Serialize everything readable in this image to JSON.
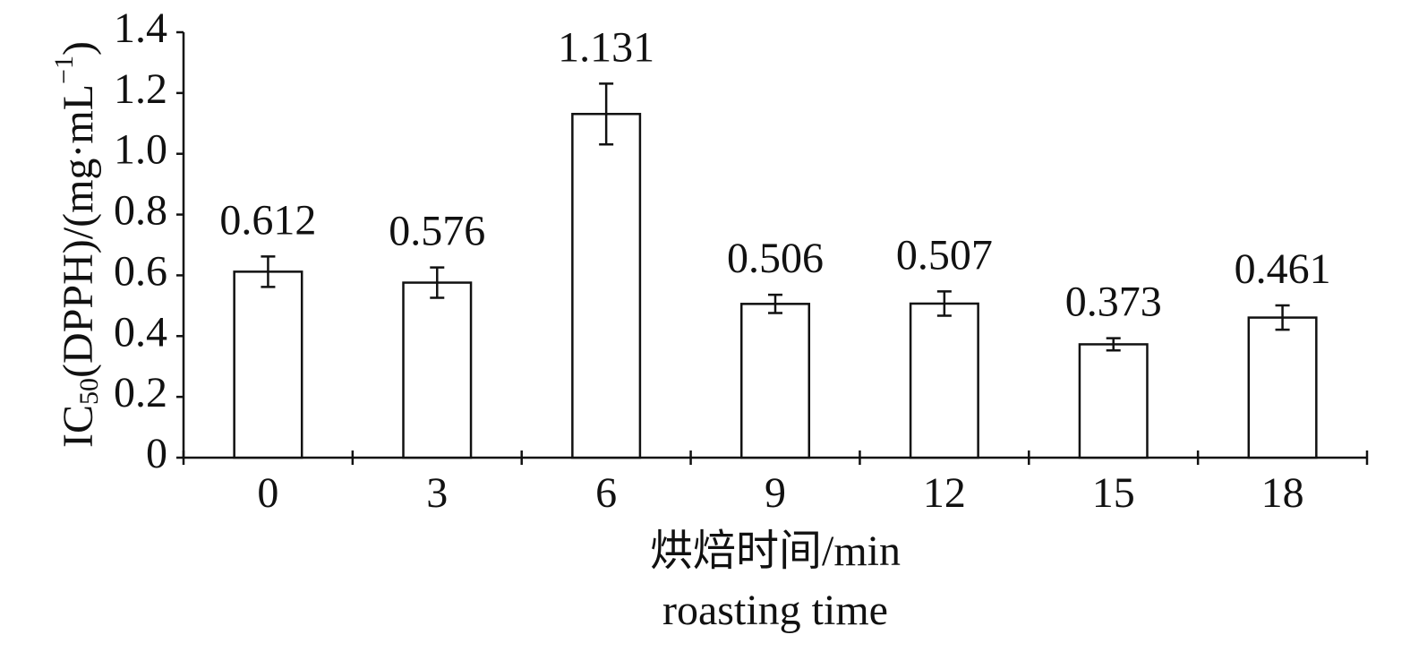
{
  "chart_data": {
    "type": "bar",
    "categories": [
      "0",
      "3",
      "6",
      "9",
      "12",
      "15",
      "18"
    ],
    "values": [
      0.612,
      0.576,
      1.131,
      0.506,
      0.507,
      0.373,
      0.461
    ],
    "errors": [
      0.05,
      0.05,
      0.1,
      0.03,
      0.04,
      0.02,
      0.04
    ],
    "color": "#ffffff",
    "ylim": [
      0,
      1.4
    ],
    "yticks": [
      0,
      0.2,
      0.4,
      0.6,
      0.8,
      {
        "value": 1,
        "label": "1.0"
      },
      1.2,
      1.4
    ],
    "grid": false,
    "ylabel": {
      "main": "IC",
      "sub": "50",
      "rest": "(DPPH)/(mg·mL",
      "sup": "−1",
      "end": ")"
    },
    "xlabel": [
      "烘焙时间/min",
      "roasting time"
    ]
  }
}
